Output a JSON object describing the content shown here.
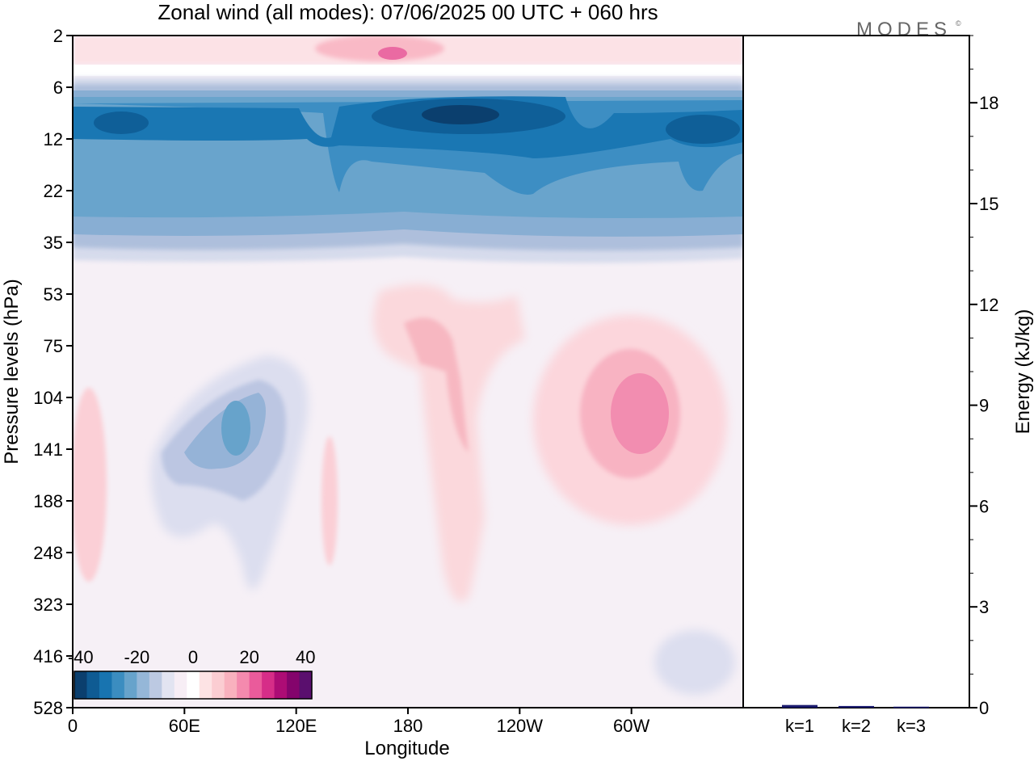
{
  "chart_data": [
    {
      "type": "heatmap",
      "title": "Zonal wind (all modes):  07/06/2025  00 UTC  + 060 hrs",
      "xlabel": "Longitude",
      "ylabel": "Pressure levels (hPa)",
      "x_ticks": [
        "0",
        "60E",
        "120E",
        "180",
        "120W",
        "60W"
      ],
      "y_ticks": [
        "2",
        "6",
        "12",
        "22",
        "35",
        "53",
        "75",
        "104",
        "141",
        "188",
        "248",
        "323",
        "416",
        "528"
      ],
      "colorbar": {
        "ticks": [
          "-40",
          "-20",
          "0",
          "20",
          "40"
        ],
        "range": [
          -40,
          40
        ],
        "step": 5,
        "colors": [
          "#0b3f6e",
          "#0f5b93",
          "#1874b0",
          "#3b8dc0",
          "#67a3cb",
          "#95b7d8",
          "#bcc9e2",
          "#e2e4f1",
          "#f7eef5",
          "#ffffff",
          "#fde3e4",
          "#fbcdd2",
          "#f9b1be",
          "#f48aae",
          "#ea5b9b",
          "#d62d88",
          "#ad0c75",
          "#84046c",
          "#5a0f6e"
        ]
      },
      "features": [
        {
          "kind": "negative max",
          "approx_value": -35,
          "longitude": "~180-150W",
          "pressure_hPa": "~8-12"
        },
        {
          "kind": "negative band",
          "approx_value": -25,
          "longitude": "all",
          "pressure_hPa": "~6-35"
        },
        {
          "kind": "negative local",
          "approx_value": -15,
          "longitude": "~80E-100E",
          "pressure_hPa": "~104-188"
        },
        {
          "kind": "positive max",
          "approx_value": 15,
          "longitude": "~70W-60W",
          "pressure_hPa": "~104-141"
        }
      ]
    },
    {
      "type": "bar",
      "categories": [
        "k=1",
        "k=2",
        "k=3"
      ],
      "values": [
        0.08,
        0.05,
        0.03
      ],
      "ylabel": "Energy (kJ/kg)",
      "ylim": [
        0,
        20
      ],
      "y_ticks": [
        "0",
        "3",
        "6",
        "9",
        "12",
        "15",
        "18"
      ]
    }
  ],
  "brand": "MODES",
  "brand_mark": "©"
}
